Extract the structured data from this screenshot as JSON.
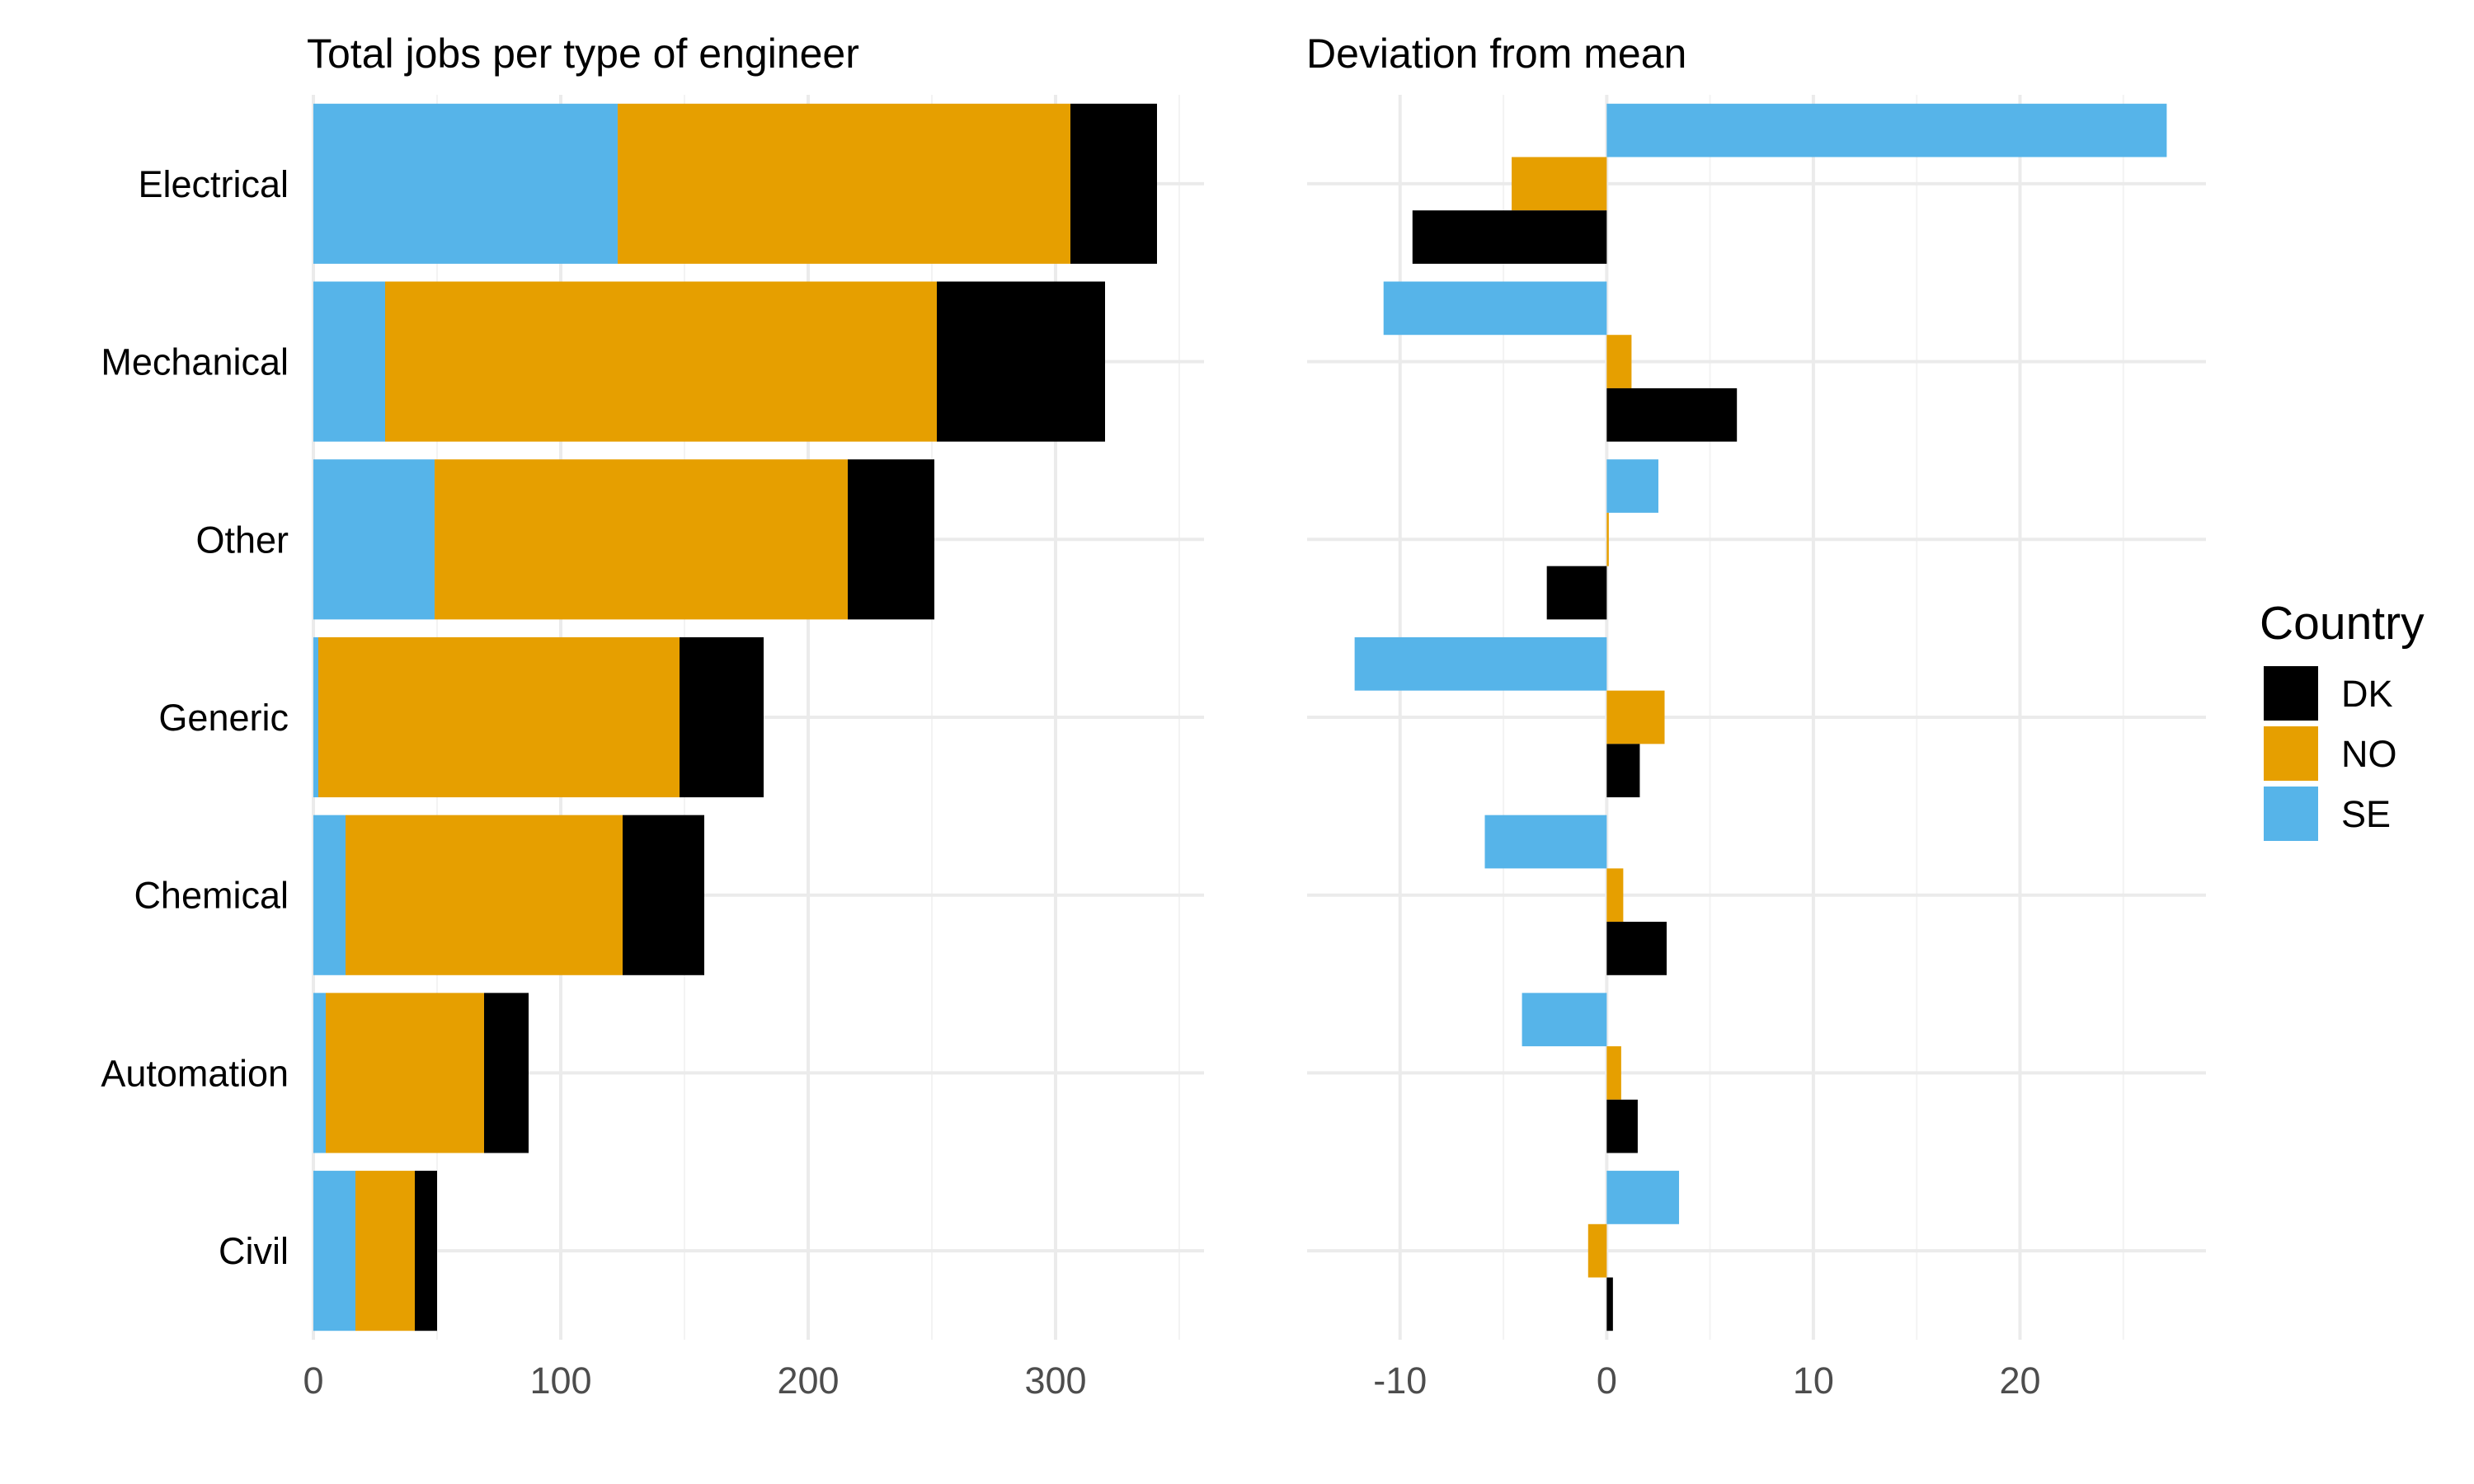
{
  "chart_data": [
    {
      "type": "bar",
      "orientation": "horizontal",
      "stacked": true,
      "title": "Total jobs per type of engineer",
      "xlabel": "",
      "ylabel": "",
      "categories": [
        "Electrical",
        "Mechanical",
        "Other",
        "Generic",
        "Chemical",
        "Automation",
        "Civil"
      ],
      "series": [
        {
          "name": "SE",
          "color": "#56B4E9",
          "values": [
            123,
            29,
            49,
            2,
            13,
            5,
            17
          ]
        },
        {
          "name": "NO",
          "color": "#E69F00",
          "values": [
            183,
            223,
            167,
            146,
            112,
            64,
            24
          ]
        },
        {
          "name": "DK",
          "color": "#000000",
          "values": [
            35,
            68,
            35,
            34,
            33,
            18,
            9
          ]
        }
      ],
      "xlim": [
        0,
        360
      ],
      "x_ticks": [
        0,
        100,
        200,
        300
      ],
      "x_tick_labels": [
        "0",
        "100",
        "200",
        "300"
      ],
      "grid": true
    },
    {
      "type": "bar",
      "orientation": "horizontal",
      "grouped": true,
      "title": "Deviation from mean",
      "xlabel": "",
      "ylabel": "",
      "categories": [
        "Electrical",
        "Mechanical",
        "Other",
        "Generic",
        "Chemical",
        "Automation",
        "Civil"
      ],
      "series": [
        {
          "name": "SE",
          "color": "#56B4E9",
          "values": [
            27.1,
            -10.8,
            2.5,
            -12.2,
            -5.9,
            -4.1,
            3.5
          ]
        },
        {
          "name": "NO",
          "color": "#E69F00",
          "values": [
            -4.6,
            1.2,
            0.1,
            2.8,
            0.8,
            0.7,
            -0.9
          ]
        },
        {
          "name": "DK",
          "color": "#000000",
          "values": [
            -9.4,
            6.3,
            -2.9,
            1.6,
            2.9,
            1.5,
            0.3
          ]
        }
      ],
      "xlim": [
        -14.5,
        29.0
      ],
      "x_ticks": [
        -10,
        0,
        10,
        20
      ],
      "x_tick_labels": [
        "-10",
        "0",
        "10",
        "20"
      ],
      "grid": true
    }
  ],
  "legend": {
    "title": "Country",
    "position": "right",
    "items": [
      {
        "label": "DK",
        "color": "#000000"
      },
      {
        "label": "NO",
        "color": "#E69F00"
      },
      {
        "label": "SE",
        "color": "#56B4E9"
      }
    ]
  }
}
